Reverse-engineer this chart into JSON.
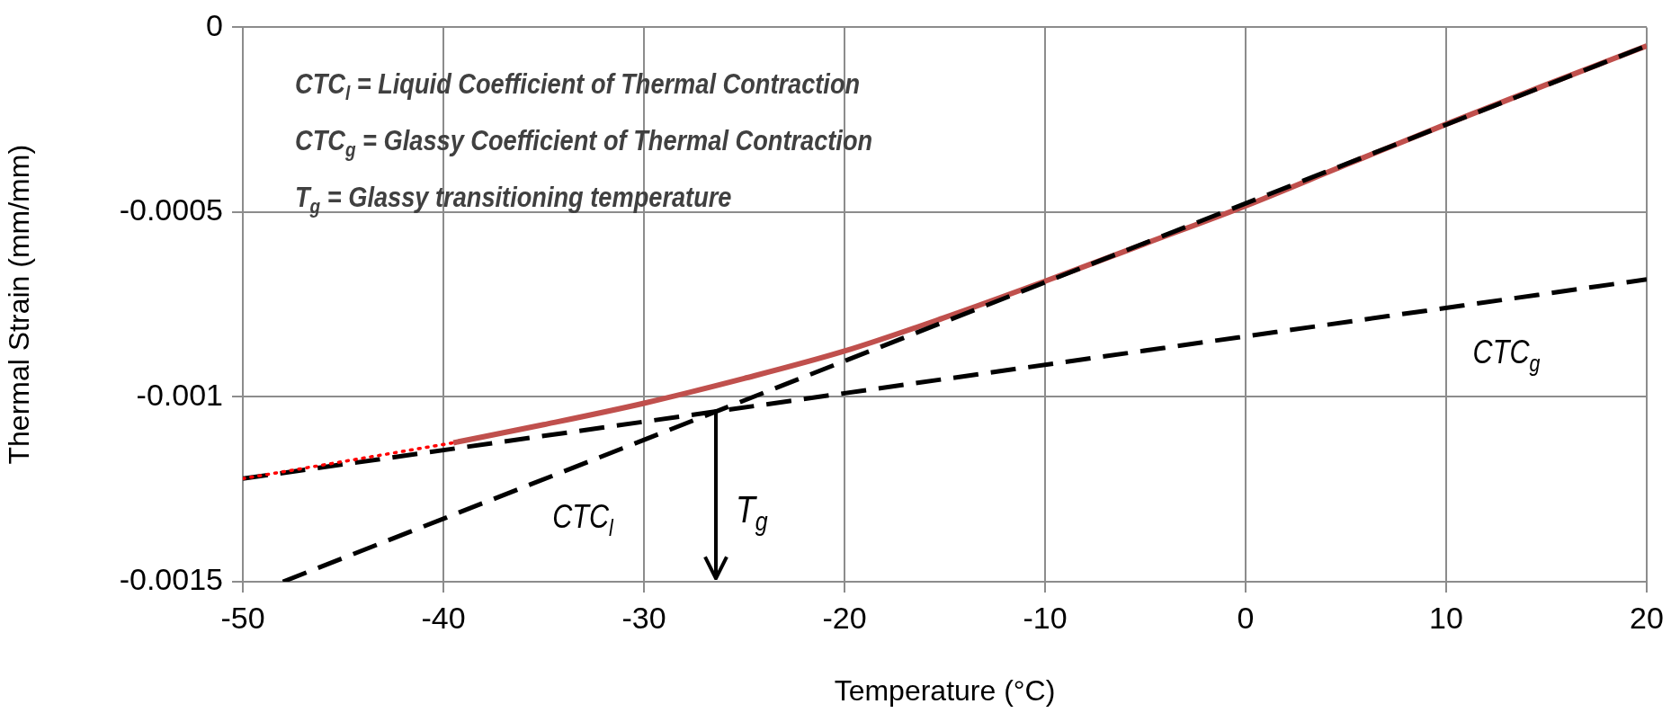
{
  "chart_data": {
    "type": "line",
    "xlabel": "Temperature (°C)",
    "ylabel": "Thermal Strain (mm/mm)",
    "xlim": [
      -50,
      20
    ],
    "xticks": [
      -50,
      -40,
      -30,
      -20,
      -10,
      0,
      10,
      20
    ],
    "ylim": [
      -0.0015,
      0
    ],
    "yticks": [
      -0.0015,
      -0.001,
      -0.0005,
      0
    ],
    "grid": true,
    "legend": false,
    "marker": "none",
    "series": [
      {
        "color": "#c0504d",
        "line_style": "solid",
        "x": [
          -39.5,
          -35,
          -30,
          -25,
          -20,
          -15,
          -10,
          -5,
          0,
          5,
          10,
          15,
          20
        ],
        "values": [
          -0.001124,
          -0.001075,
          -0.001017,
          -0.00095,
          -0.000876,
          -0.000785,
          -0.000687,
          -0.000585,
          -0.000483,
          -0.000372,
          -0.000262,
          -0.000155,
          -5e-05
        ]
      },
      {
        "color": "#ff0000",
        "line_style": "dotted",
        "x": [
          -50,
          -39.5
        ],
        "values": [
          -0.001221,
          -0.001124
        ]
      },
      {
        "name": "CTC$_{l}$",
        "color": "#000000",
        "line_style": "dashed",
        "x": [
          -48,
          20
        ],
        "values": [
          -0.0015,
          -5e-05
        ]
      },
      {
        "name": "CTC$_{g}$",
        "color": "#000000",
        "line_style": "dashed",
        "x": [
          -50,
          20
        ],
        "values": [
          -0.001221,
          -0.000682
        ]
      }
    ],
    "annotations": [
      "CTC$_{l}$ = Liquid Coefficient of Thermal Contraction",
      "CTC$_{g}$ = Glassy Coefficient of Thermal Contraction",
      "T$_{g}$ = Glassy transitioning temperature",
      "T$_{g}$"
    ]
  }
}
